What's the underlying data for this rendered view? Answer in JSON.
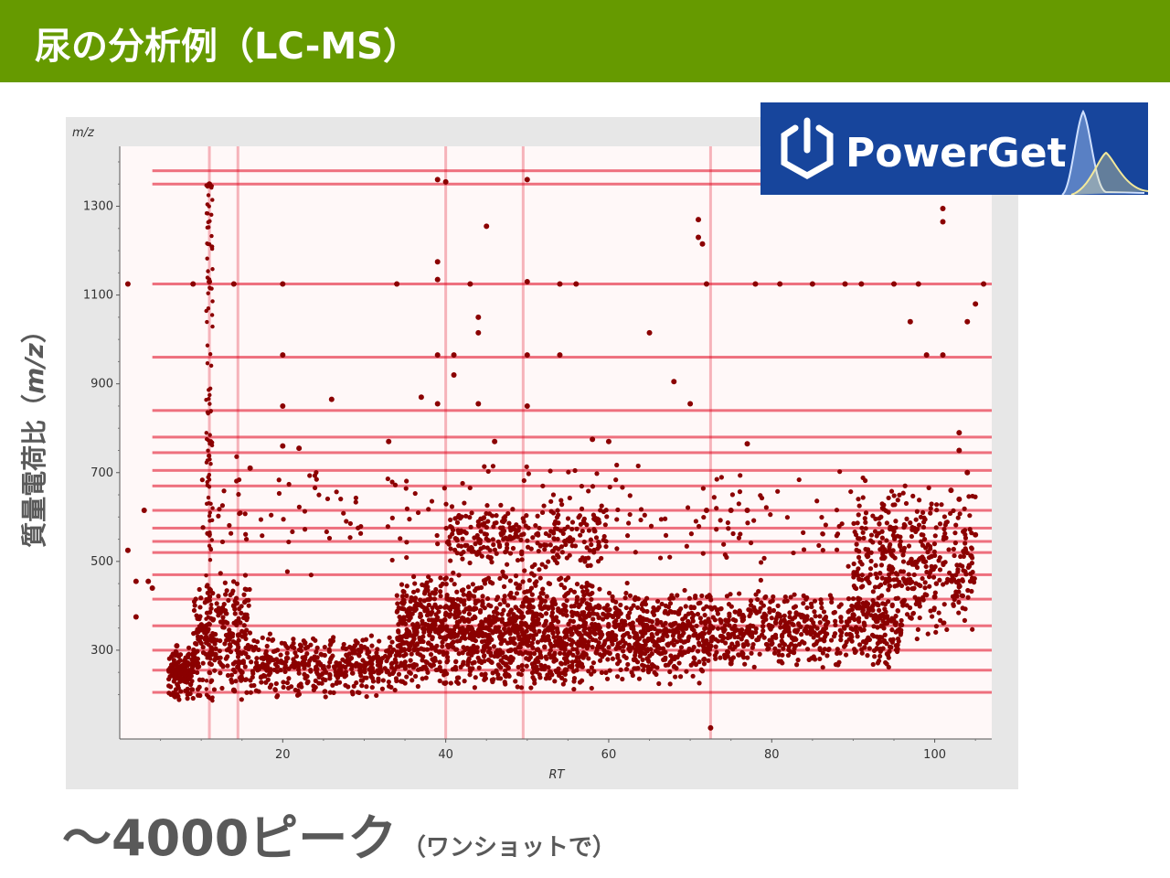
{
  "slide": {
    "title": "尿の分析例（LC-MS）",
    "y_axis_label_main": "質量電荷比（",
    "y_axis_label_unit": "m/z",
    "y_axis_label_close": "）",
    "peak_count": "～4000ピーク",
    "peak_count_note": "（ワンショットで）",
    "logo_text": "PowerGet",
    "accent_color": "#669a00",
    "marker_color": "#8b0000",
    "band_color": "#e0001a",
    "logo_color": "#17459c"
  },
  "chart_data": {
    "type": "scatter",
    "xlabel": "RT",
    "ylabel": "m/z",
    "xlim": [
      0,
      107
    ],
    "ylim": [
      100,
      1435
    ],
    "xticks": [
      20,
      40,
      60,
      80,
      100
    ],
    "yticks": [
      300,
      500,
      700,
      900,
      1100,
      1300
    ],
    "grid": false,
    "horizontal_bands_mz": [
      1380,
      1350,
      1125,
      960,
      840,
      780,
      745,
      705,
      670,
      615,
      575,
      545,
      520,
      470,
      415,
      355,
      300,
      255,
      205
    ],
    "vertical_bands_rt": [
      11,
      14.5,
      40,
      49.5,
      72.5
    ],
    "total_peaks": 4000,
    "listed_points": [
      {
        "x": 11,
        "y": 1350
      },
      {
        "x": 39,
        "y": 1360
      },
      {
        "x": 40,
        "y": 1355
      },
      {
        "x": 50,
        "y": 1360
      },
      {
        "x": 45,
        "y": 1255
      },
      {
        "x": 71,
        "y": 1270
      },
      {
        "x": 71,
        "y": 1230
      },
      {
        "x": 71.5,
        "y": 1215
      },
      {
        "x": 101,
        "y": 1295
      },
      {
        "x": 101,
        "y": 1265
      },
      {
        "x": 1,
        "y": 1125
      },
      {
        "x": 9,
        "y": 1125
      },
      {
        "x": 11,
        "y": 1130
      },
      {
        "x": 14,
        "y": 1125
      },
      {
        "x": 20,
        "y": 1125
      },
      {
        "x": 34,
        "y": 1125
      },
      {
        "x": 39,
        "y": 1135
      },
      {
        "x": 43,
        "y": 1125
      },
      {
        "x": 50,
        "y": 1130
      },
      {
        "x": 54,
        "y": 1125
      },
      {
        "x": 56,
        "y": 1125
      },
      {
        "x": 72,
        "y": 1125
      },
      {
        "x": 78,
        "y": 1125
      },
      {
        "x": 81,
        "y": 1125
      },
      {
        "x": 85,
        "y": 1125
      },
      {
        "x": 89,
        "y": 1125
      },
      {
        "x": 91,
        "y": 1125
      },
      {
        "x": 95,
        "y": 1125
      },
      {
        "x": 98,
        "y": 1125
      },
      {
        "x": 106,
        "y": 1125
      },
      {
        "x": 39,
        "y": 1175
      },
      {
        "x": 44,
        "y": 1050
      },
      {
        "x": 44,
        "y": 1015
      },
      {
        "x": 65,
        "y": 1015
      },
      {
        "x": 39,
        "y": 965
      },
      {
        "x": 41,
        "y": 965
      },
      {
        "x": 20,
        "y": 965
      },
      {
        "x": 54,
        "y": 965
      },
      {
        "x": 50,
        "y": 965
      },
      {
        "x": 41,
        "y": 920
      },
      {
        "x": 68,
        "y": 905
      },
      {
        "x": 101,
        "y": 965
      },
      {
        "x": 99,
        "y": 965
      },
      {
        "x": 104,
        "y": 1040
      },
      {
        "x": 105,
        "y": 1080
      },
      {
        "x": 97,
        "y": 1040
      },
      {
        "x": 20,
        "y": 850
      },
      {
        "x": 26,
        "y": 865
      },
      {
        "x": 37,
        "y": 870
      },
      {
        "x": 39,
        "y": 855
      },
      {
        "x": 44,
        "y": 855
      },
      {
        "x": 50,
        "y": 850
      },
      {
        "x": 70,
        "y": 855
      },
      {
        "x": 33,
        "y": 770
      },
      {
        "x": 46,
        "y": 770
      },
      {
        "x": 58,
        "y": 775
      },
      {
        "x": 60,
        "y": 770
      },
      {
        "x": 77,
        "y": 765
      },
      {
        "x": 103,
        "y": 790
      },
      {
        "x": 103,
        "y": 750
      },
      {
        "x": 20,
        "y": 760
      },
      {
        "x": 22,
        "y": 755
      },
      {
        "x": 16,
        "y": 710
      },
      {
        "x": 72,
        "y": 615
      },
      {
        "x": 75,
        "y": 615
      },
      {
        "x": 77,
        "y": 615
      },
      {
        "x": 1,
        "y": 525
      },
      {
        "x": 3,
        "y": 615
      },
      {
        "x": 2,
        "y": 455
      },
      {
        "x": 3.5,
        "y": 455
      },
      {
        "x": 4,
        "y": 440
      },
      {
        "x": 2,
        "y": 375
      },
      {
        "x": 72.5,
        "y": 125
      },
      {
        "x": 7,
        "y": 200
      },
      {
        "x": 8,
        "y": 240
      },
      {
        "x": 9,
        "y": 280
      },
      {
        "x": 7,
        "y": 310
      },
      {
        "x": 14,
        "y": 210
      },
      {
        "x": 15,
        "y": 250
      },
      {
        "x": 14,
        "y": 400
      },
      {
        "x": 45,
        "y": 350
      },
      {
        "x": 48,
        "y": 300
      },
      {
        "x": 52,
        "y": 330
      },
      {
        "x": 60,
        "y": 380
      },
      {
        "x": 75,
        "y": 270
      },
      {
        "x": 82,
        "y": 350
      },
      {
        "x": 90,
        "y": 380
      },
      {
        "x": 100,
        "y": 420
      },
      {
        "x": 103,
        "y": 640
      },
      {
        "x": 104,
        "y": 700
      },
      {
        "x": 102,
        "y": 660
      },
      {
        "x": 105,
        "y": 560
      }
    ]
  }
}
